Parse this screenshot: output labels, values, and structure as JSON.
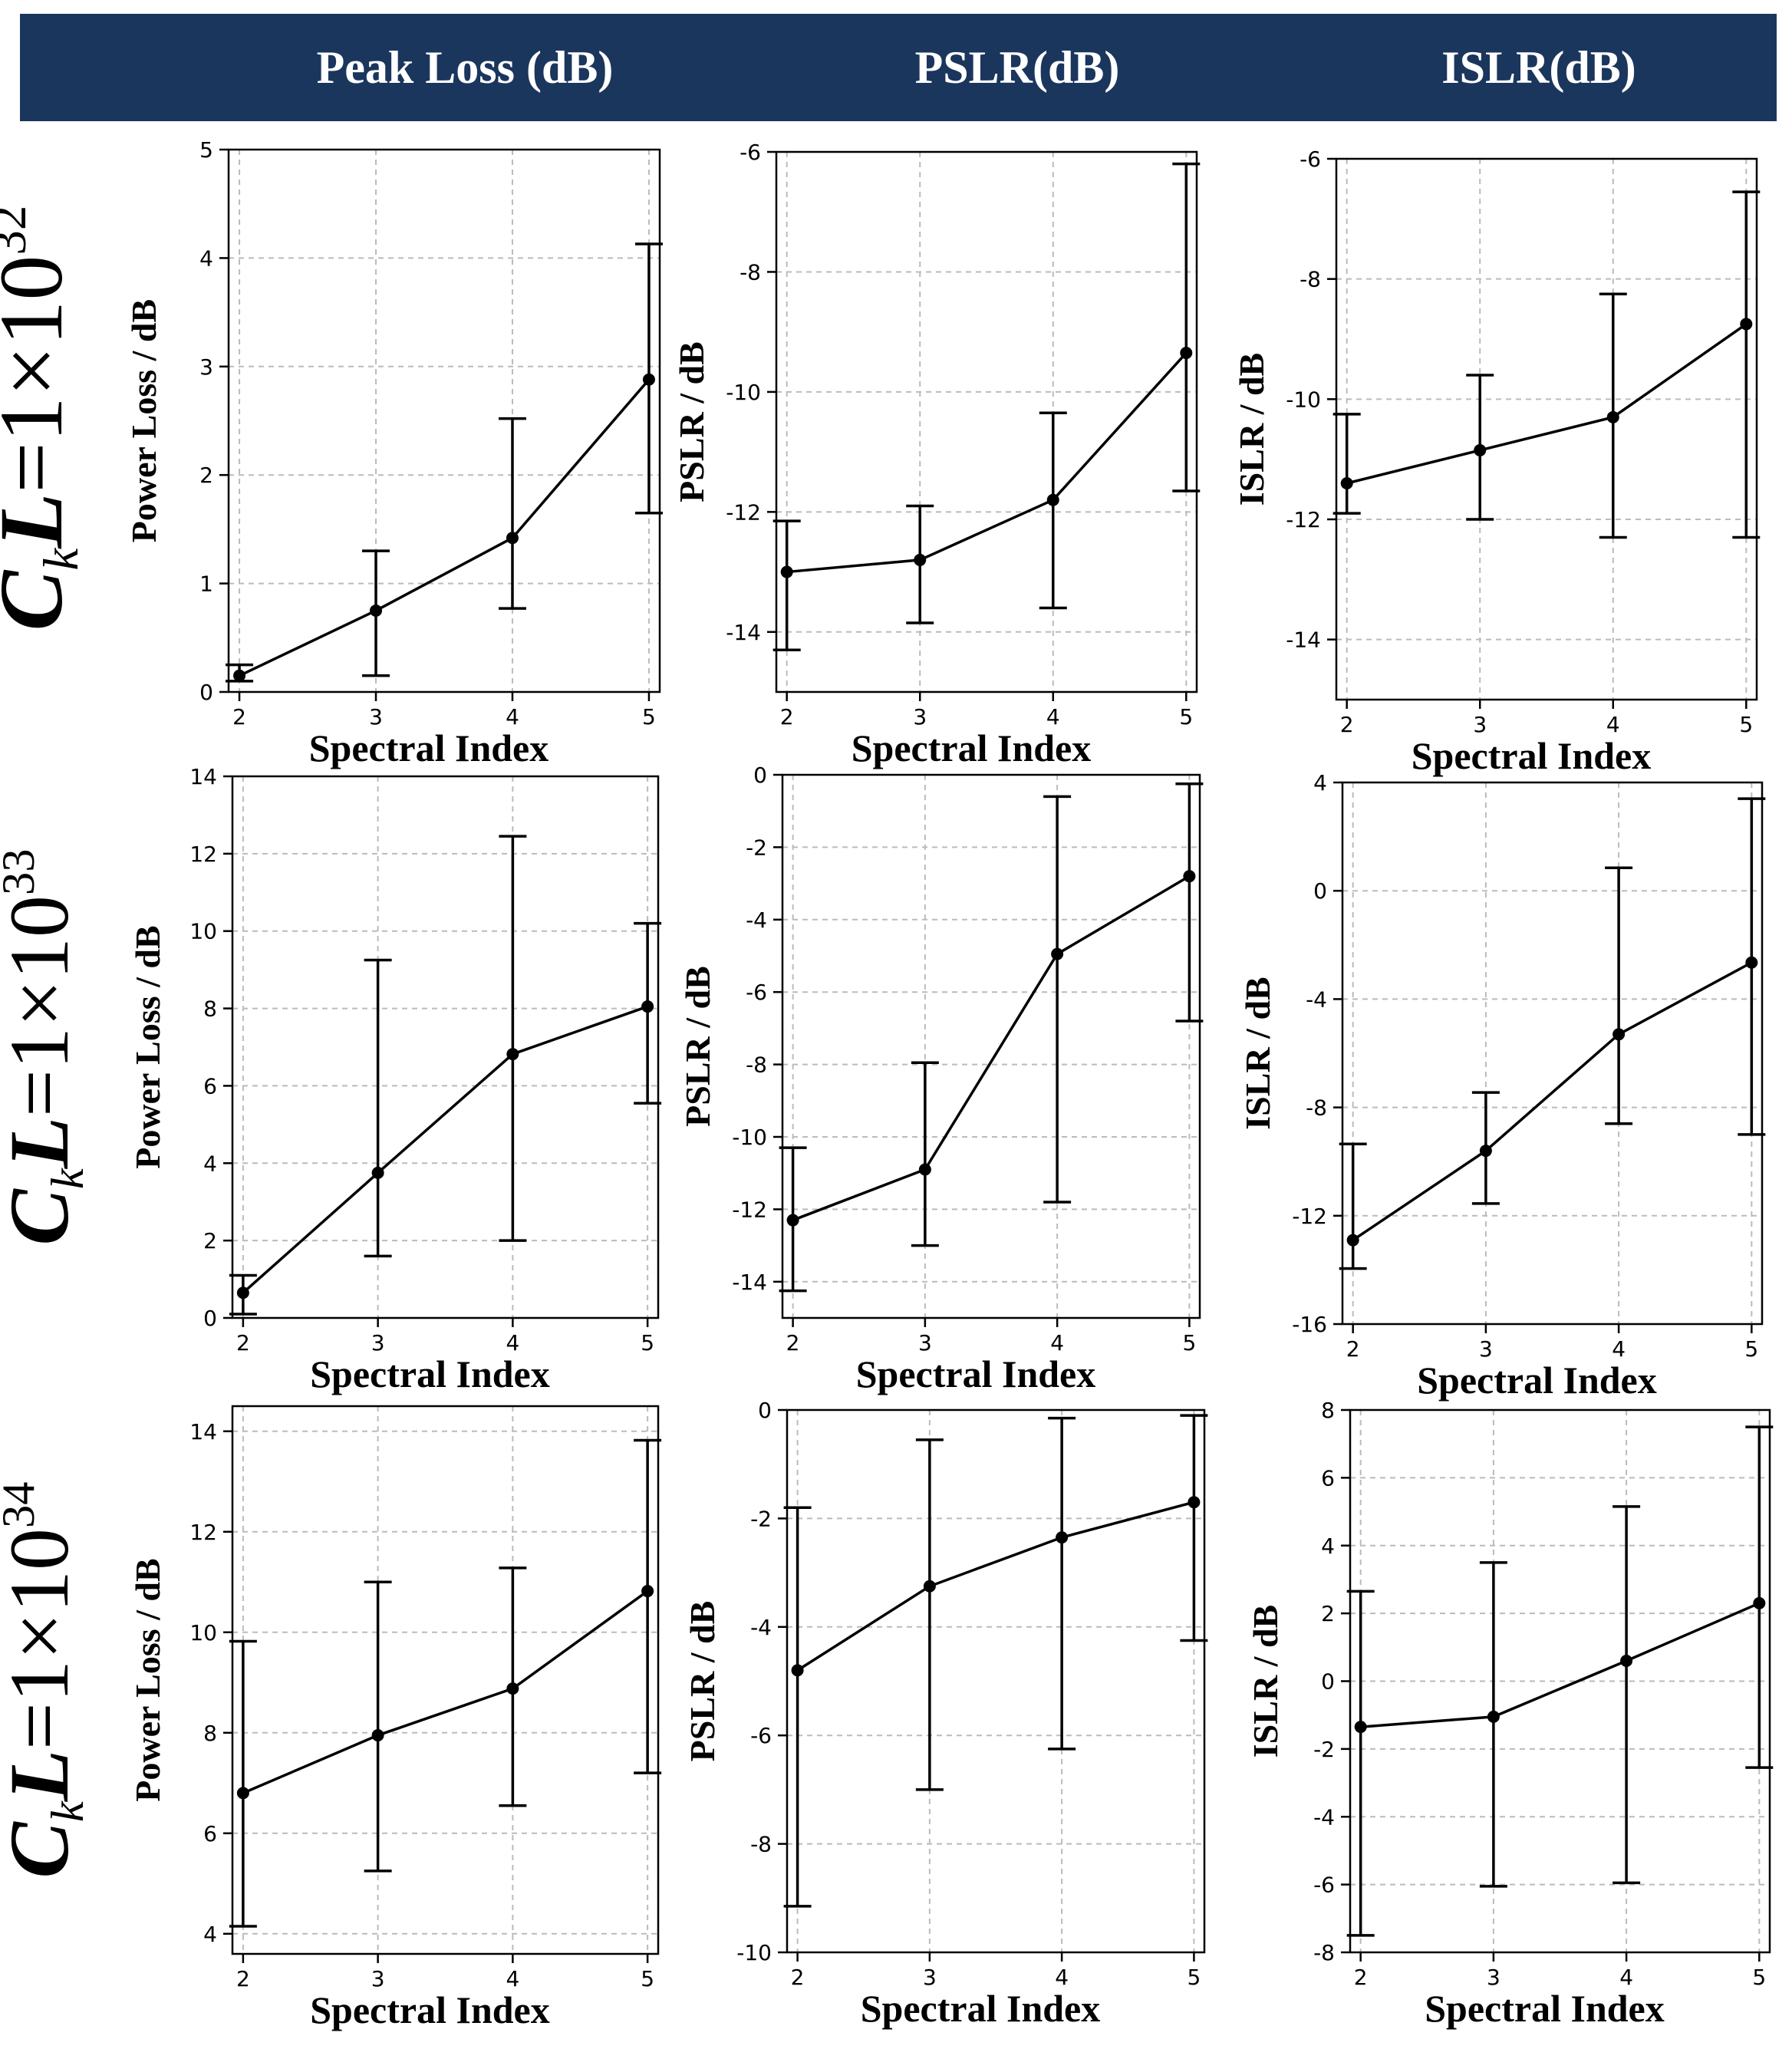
{
  "header": {
    "columns": [
      "Peak Loss (dB)",
      "PSLR(dB)",
      "ISLR(dB)"
    ]
  },
  "rows": [
    {
      "prefix": "C",
      "sub": "k",
      "mid": "L",
      "value": "=1×10",
      "exp": "32"
    },
    {
      "prefix": "C",
      "sub": "k",
      "mid": "L",
      "value": "=1×10",
      "exp": "33"
    },
    {
      "prefix": "C",
      "sub": "k",
      "mid": "L",
      "value": "=1×10",
      "exp": "34"
    }
  ],
  "colors": {
    "header_bg": "#1b365d",
    "line": "#000000",
    "grid": "#bbbbbb"
  },
  "chart_data": [
    {
      "type": "line",
      "row": 0,
      "col": 0,
      "xlabel": "Spectral Index",
      "ylabel": "Power Loss / dB",
      "x": [
        2,
        3,
        4,
        5
      ],
      "y": [
        0.15,
        0.75,
        1.42,
        2.88
      ],
      "err_low": [
        0.1,
        0.15,
        0.77,
        1.65
      ],
      "err_high": [
        0.25,
        1.3,
        2.52,
        4.13
      ],
      "ylim": [
        0,
        5
      ],
      "yticks": [
        0,
        1,
        2,
        3,
        4,
        5
      ],
      "xticks": [
        2,
        3,
        4,
        5
      ],
      "grid": true
    },
    {
      "type": "line",
      "row": 0,
      "col": 1,
      "xlabel": "Spectral Index",
      "ylabel": "PSLR / dB",
      "x": [
        2,
        3,
        4,
        5
      ],
      "y": [
        -13.0,
        -12.8,
        -11.8,
        -9.35
      ],
      "err_low": [
        -14.3,
        -13.85,
        -13.6,
        -11.65
      ],
      "err_high": [
        -12.15,
        -11.9,
        -10.35,
        -6.2
      ],
      "ylim": [
        -15,
        -6
      ],
      "yticks": [
        -14,
        -12,
        -10,
        -8,
        -6
      ],
      "xticks": [
        2,
        3,
        4,
        5
      ],
      "grid": true
    },
    {
      "type": "line",
      "row": 0,
      "col": 2,
      "xlabel": "Spectral Index",
      "ylabel": "ISLR / dB",
      "x": [
        2,
        3,
        4,
        5
      ],
      "y": [
        -11.4,
        -10.85,
        -10.3,
        -8.75
      ],
      "err_low": [
        -11.9,
        -12.0,
        -12.3,
        -12.3
      ],
      "err_high": [
        -10.25,
        -9.6,
        -8.25,
        -6.55
      ],
      "ylim": [
        -15,
        -6
      ],
      "yticks": [
        -14,
        -12,
        -10,
        -8,
        -6
      ],
      "xticks": [
        2,
        3,
        4,
        5
      ],
      "grid": true
    },
    {
      "type": "line",
      "row": 1,
      "col": 0,
      "xlabel": "Spectral Index",
      "ylabel": "Power Loss / dB",
      "x": [
        2,
        3,
        4,
        5
      ],
      "y": [
        0.65,
        3.75,
        6.82,
        8.05
      ],
      "err_low": [
        0.1,
        1.6,
        2.0,
        5.55
      ],
      "err_high": [
        1.1,
        9.25,
        12.45,
        10.2
      ],
      "ylim": [
        0,
        14
      ],
      "yticks": [
        0,
        2,
        4,
        6,
        8,
        10,
        12,
        14
      ],
      "xticks": [
        2,
        3,
        4,
        5
      ],
      "grid": true
    },
    {
      "type": "line",
      "row": 1,
      "col": 1,
      "xlabel": "Spectral Index",
      "ylabel": "PSLR / dB",
      "x": [
        2,
        3,
        4,
        5
      ],
      "y": [
        -12.3,
        -10.9,
        -4.95,
        -2.8
      ],
      "err_low": [
        -14.25,
        -13.0,
        -11.8,
        -6.8
      ],
      "err_high": [
        -10.3,
        -7.95,
        -0.6,
        -0.25
      ],
      "ylim": [
        -15,
        0
      ],
      "yticks": [
        -14,
        -12,
        -10,
        -8,
        -6,
        -4,
        -2,
        0
      ],
      "xticks": [
        2,
        3,
        4,
        5
      ],
      "grid": true
    },
    {
      "type": "line",
      "row": 1,
      "col": 2,
      "xlabel": "Spectral Index",
      "ylabel": "ISLR / dB",
      "x": [
        2,
        3,
        4,
        5
      ],
      "y": [
        -12.9,
        -9.6,
        -5.3,
        -2.65
      ],
      "err_low": [
        -13.95,
        -11.55,
        -8.6,
        -9.0
      ],
      "err_high": [
        -9.35,
        -7.45,
        0.85,
        3.4
      ],
      "ylim": [
        -16,
        4
      ],
      "yticks": [
        -16,
        -12,
        -8,
        -4,
        0,
        4
      ],
      "xticks": [
        2,
        3,
        4,
        5
      ],
      "grid": true
    },
    {
      "type": "line",
      "row": 2,
      "col": 0,
      "xlabel": "Spectral Index",
      "ylabel": "Power Loss / dB",
      "x": [
        2,
        3,
        4,
        5
      ],
      "y": [
        6.8,
        7.95,
        8.88,
        10.82
      ],
      "err_low": [
        4.15,
        5.25,
        6.55,
        7.2
      ],
      "err_high": [
        9.82,
        11.0,
        11.28,
        13.82
      ],
      "ylim": [
        3.6,
        14.5
      ],
      "yticks": [
        4,
        6,
        8,
        10,
        12,
        14
      ],
      "xticks": [
        2,
        3,
        4,
        5
      ],
      "grid": true
    },
    {
      "type": "line",
      "row": 2,
      "col": 1,
      "xlabel": "Spectral Index",
      "ylabel": "PSLR / dB",
      "x": [
        2,
        3,
        4,
        5
      ],
      "y": [
        -4.8,
        -3.25,
        -2.35,
        -1.7
      ],
      "err_low": [
        -9.15,
        -7.0,
        -6.25,
        -4.25
      ],
      "err_high": [
        -1.8,
        -0.55,
        -0.15,
        -0.1
      ],
      "ylim": [
        -10,
        0
      ],
      "yticks": [
        -10,
        -8,
        -6,
        -4,
        -2,
        0
      ],
      "xticks": [
        2,
        3,
        4,
        5
      ],
      "grid": true
    },
    {
      "type": "line",
      "row": 2,
      "col": 2,
      "xlabel": "Spectral Index",
      "ylabel": "ISLR / dB",
      "x": [
        2,
        3,
        4,
        5
      ],
      "y": [
        -1.35,
        -1.05,
        0.6,
        2.3
      ],
      "err_low": [
        -7.5,
        -6.05,
        -5.95,
        -2.55
      ],
      "err_high": [
        2.65,
        3.5,
        5.15,
        7.5
      ],
      "ylim": [
        -8,
        8
      ],
      "yticks": [
        -8,
        -6,
        -4,
        -2,
        0,
        2,
        4,
        6,
        8
      ],
      "xticks": [
        2,
        3,
        4,
        5
      ],
      "grid": true
    }
  ]
}
